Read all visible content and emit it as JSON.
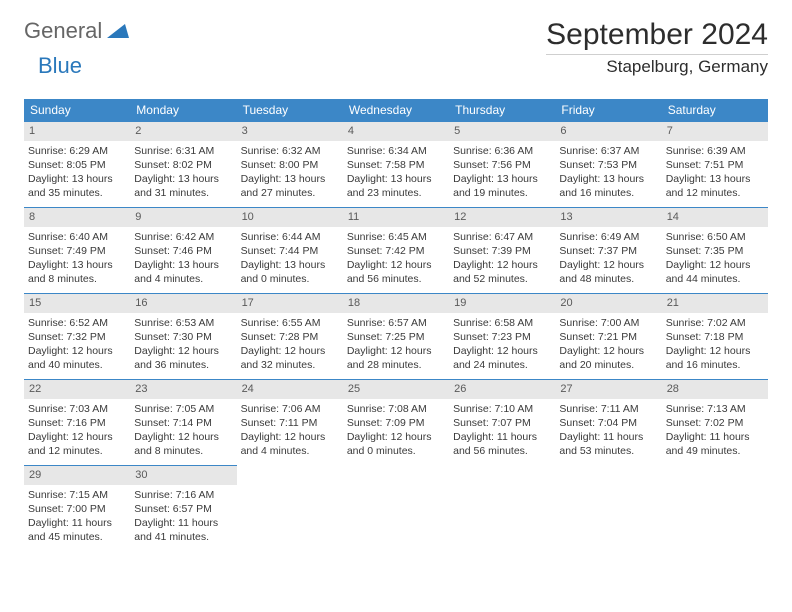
{
  "brand": {
    "text_general": "General",
    "text_blue": "Blue",
    "triangle_color": "#2a78bb"
  },
  "title": {
    "month": "September 2024",
    "location": "Stapelburg, Germany"
  },
  "colors": {
    "header_bg": "#3c87c7",
    "header_text": "#ffffff",
    "daynum_bg": "#e7e7e7",
    "cell_border": "#3c87c7"
  },
  "weekdays": [
    "Sunday",
    "Monday",
    "Tuesday",
    "Wednesday",
    "Thursday",
    "Friday",
    "Saturday"
  ],
  "weeks": [
    [
      {
        "n": "1",
        "sr": "Sunrise: 6:29 AM",
        "ss": "Sunset: 8:05 PM",
        "dl": "Daylight: 13 hours and 35 minutes."
      },
      {
        "n": "2",
        "sr": "Sunrise: 6:31 AM",
        "ss": "Sunset: 8:02 PM",
        "dl": "Daylight: 13 hours and 31 minutes."
      },
      {
        "n": "3",
        "sr": "Sunrise: 6:32 AM",
        "ss": "Sunset: 8:00 PM",
        "dl": "Daylight: 13 hours and 27 minutes."
      },
      {
        "n": "4",
        "sr": "Sunrise: 6:34 AM",
        "ss": "Sunset: 7:58 PM",
        "dl": "Daylight: 13 hours and 23 minutes."
      },
      {
        "n": "5",
        "sr": "Sunrise: 6:36 AM",
        "ss": "Sunset: 7:56 PM",
        "dl": "Daylight: 13 hours and 19 minutes."
      },
      {
        "n": "6",
        "sr": "Sunrise: 6:37 AM",
        "ss": "Sunset: 7:53 PM",
        "dl": "Daylight: 13 hours and 16 minutes."
      },
      {
        "n": "7",
        "sr": "Sunrise: 6:39 AM",
        "ss": "Sunset: 7:51 PM",
        "dl": "Daylight: 13 hours and 12 minutes."
      }
    ],
    [
      {
        "n": "8",
        "sr": "Sunrise: 6:40 AM",
        "ss": "Sunset: 7:49 PM",
        "dl": "Daylight: 13 hours and 8 minutes."
      },
      {
        "n": "9",
        "sr": "Sunrise: 6:42 AM",
        "ss": "Sunset: 7:46 PM",
        "dl": "Daylight: 13 hours and 4 minutes."
      },
      {
        "n": "10",
        "sr": "Sunrise: 6:44 AM",
        "ss": "Sunset: 7:44 PM",
        "dl": "Daylight: 13 hours and 0 minutes."
      },
      {
        "n": "11",
        "sr": "Sunrise: 6:45 AM",
        "ss": "Sunset: 7:42 PM",
        "dl": "Daylight: 12 hours and 56 minutes."
      },
      {
        "n": "12",
        "sr": "Sunrise: 6:47 AM",
        "ss": "Sunset: 7:39 PM",
        "dl": "Daylight: 12 hours and 52 minutes."
      },
      {
        "n": "13",
        "sr": "Sunrise: 6:49 AM",
        "ss": "Sunset: 7:37 PM",
        "dl": "Daylight: 12 hours and 48 minutes."
      },
      {
        "n": "14",
        "sr": "Sunrise: 6:50 AM",
        "ss": "Sunset: 7:35 PM",
        "dl": "Daylight: 12 hours and 44 minutes."
      }
    ],
    [
      {
        "n": "15",
        "sr": "Sunrise: 6:52 AM",
        "ss": "Sunset: 7:32 PM",
        "dl": "Daylight: 12 hours and 40 minutes."
      },
      {
        "n": "16",
        "sr": "Sunrise: 6:53 AM",
        "ss": "Sunset: 7:30 PM",
        "dl": "Daylight: 12 hours and 36 minutes."
      },
      {
        "n": "17",
        "sr": "Sunrise: 6:55 AM",
        "ss": "Sunset: 7:28 PM",
        "dl": "Daylight: 12 hours and 32 minutes."
      },
      {
        "n": "18",
        "sr": "Sunrise: 6:57 AM",
        "ss": "Sunset: 7:25 PM",
        "dl": "Daylight: 12 hours and 28 minutes."
      },
      {
        "n": "19",
        "sr": "Sunrise: 6:58 AM",
        "ss": "Sunset: 7:23 PM",
        "dl": "Daylight: 12 hours and 24 minutes."
      },
      {
        "n": "20",
        "sr": "Sunrise: 7:00 AM",
        "ss": "Sunset: 7:21 PM",
        "dl": "Daylight: 12 hours and 20 minutes."
      },
      {
        "n": "21",
        "sr": "Sunrise: 7:02 AM",
        "ss": "Sunset: 7:18 PM",
        "dl": "Daylight: 12 hours and 16 minutes."
      }
    ],
    [
      {
        "n": "22",
        "sr": "Sunrise: 7:03 AM",
        "ss": "Sunset: 7:16 PM",
        "dl": "Daylight: 12 hours and 12 minutes."
      },
      {
        "n": "23",
        "sr": "Sunrise: 7:05 AM",
        "ss": "Sunset: 7:14 PM",
        "dl": "Daylight: 12 hours and 8 minutes."
      },
      {
        "n": "24",
        "sr": "Sunrise: 7:06 AM",
        "ss": "Sunset: 7:11 PM",
        "dl": "Daylight: 12 hours and 4 minutes."
      },
      {
        "n": "25",
        "sr": "Sunrise: 7:08 AM",
        "ss": "Sunset: 7:09 PM",
        "dl": "Daylight: 12 hours and 0 minutes."
      },
      {
        "n": "26",
        "sr": "Sunrise: 7:10 AM",
        "ss": "Sunset: 7:07 PM",
        "dl": "Daylight: 11 hours and 56 minutes."
      },
      {
        "n": "27",
        "sr": "Sunrise: 7:11 AM",
        "ss": "Sunset: 7:04 PM",
        "dl": "Daylight: 11 hours and 53 minutes."
      },
      {
        "n": "28",
        "sr": "Sunrise: 7:13 AM",
        "ss": "Sunset: 7:02 PM",
        "dl": "Daylight: 11 hours and 49 minutes."
      }
    ],
    [
      {
        "n": "29",
        "sr": "Sunrise: 7:15 AM",
        "ss": "Sunset: 7:00 PM",
        "dl": "Daylight: 11 hours and 45 minutes."
      },
      {
        "n": "30",
        "sr": "Sunrise: 7:16 AM",
        "ss": "Sunset: 6:57 PM",
        "dl": "Daylight: 11 hours and 41 minutes."
      },
      null,
      null,
      null,
      null,
      null
    ]
  ]
}
